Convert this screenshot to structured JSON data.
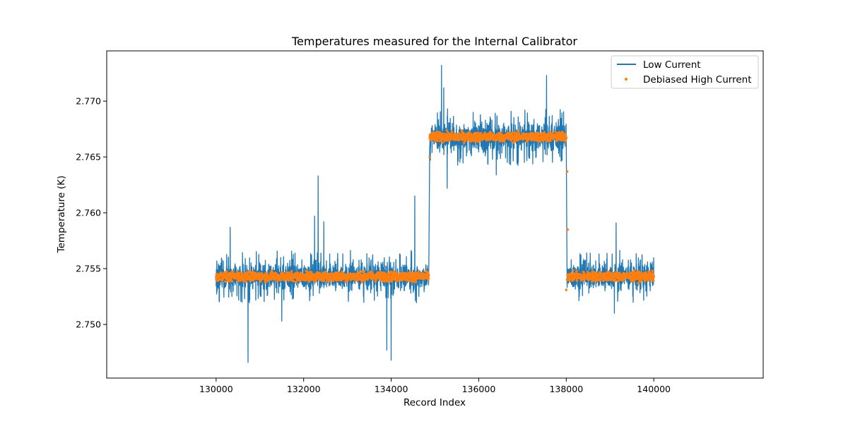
{
  "chart_data": {
    "type": "line",
    "title": "Temperatures measured for the Internal Calibrator",
    "xlabel": "Record Index",
    "ylabel": "Temperature (K)",
    "xlim": [
      127500,
      142500
    ],
    "ylim": [
      2.7452,
      2.7745
    ],
    "xticks": [
      130000,
      132000,
      134000,
      136000,
      138000,
      140000
    ],
    "yticks": [
      2.75,
      2.755,
      2.76,
      2.765,
      2.77
    ],
    "xtick_labels": [
      "130000",
      "132000",
      "134000",
      "136000",
      "138000",
      "140000"
    ],
    "ytick_labels": [
      "2.750",
      "2.755",
      "2.760",
      "2.765",
      "2.770"
    ],
    "grid": false,
    "legend_position": "top-right",
    "colors": {
      "low": "#1f77b4",
      "high": "#ff7f0e"
    },
    "series": [
      {
        "name": "Low Current",
        "style": "line",
        "segments": [
          {
            "x_start": 130000,
            "x_end": 134860,
            "level": 2.7543,
            "noise_band": [
              2.753,
              2.7555
            ]
          },
          {
            "x_start": 134880,
            "x_end": 138000,
            "level": 2.7668,
            "noise_band": [
              2.7655,
              2.7682
            ]
          },
          {
            "x_start": 138020,
            "x_end": 140000,
            "level": 2.7543,
            "noise_band": [
              2.753,
              2.7555
            ]
          }
        ],
        "spikes": [
          {
            "x": 130320,
            "y": 2.7587
          },
          {
            "x": 130730,
            "y": 2.7466
          },
          {
            "x": 131500,
            "y": 2.7503
          },
          {
            "x": 132250,
            "y": 2.7597
          },
          {
            "x": 132330,
            "y": 2.7633
          },
          {
            "x": 132460,
            "y": 2.7592
          },
          {
            "x": 133900,
            "y": 2.7477
          },
          {
            "x": 134000,
            "y": 2.7468
          },
          {
            "x": 134540,
            "y": 2.7615
          },
          {
            "x": 135150,
            "y": 2.7732
          },
          {
            "x": 135200,
            "y": 2.7712
          },
          {
            "x": 135280,
            "y": 2.7622
          },
          {
            "x": 136400,
            "y": 2.7634
          },
          {
            "x": 137550,
            "y": 2.7723
          },
          {
            "x": 139140,
            "y": 2.7591
          },
          {
            "x": 139100,
            "y": 2.751
          }
        ]
      },
      {
        "name": "Debiased High Current",
        "style": "scatter",
        "segments": [
          {
            "x_start": 130000,
            "x_end": 134860,
            "level": 2.7543,
            "noise_band": [
              2.7539,
              2.7547
            ]
          },
          {
            "x_start": 134880,
            "x_end": 138000,
            "level": 2.7668,
            "noise_band": [
              2.7664,
              2.7672
            ]
          },
          {
            "x_start": 138020,
            "x_end": 140000,
            "level": 2.7543,
            "noise_band": [
              2.7539,
              2.7547
            ]
          }
        ],
        "outliers": [
          {
            "x": 134880,
            "y": 2.765
          },
          {
            "x": 138020,
            "y": 2.7637
          },
          {
            "x": 138030,
            "y": 2.7585
          },
          {
            "x": 138000,
            "y": 2.7531
          }
        ]
      }
    ]
  }
}
